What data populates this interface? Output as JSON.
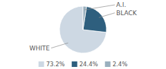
{
  "chart_data": {
    "type": "pie",
    "categories": [
      "WHITE",
      "BLACK",
      "A.I."
    ],
    "values": [
      73.2,
      24.4,
      2.4
    ],
    "value_labels": [
      "73.2%",
      "24.4%",
      "2.4%"
    ],
    "colors": [
      "#cdd8e3",
      "#2e5f7e",
      "#9ab0be"
    ],
    "legend": "bottom"
  }
}
